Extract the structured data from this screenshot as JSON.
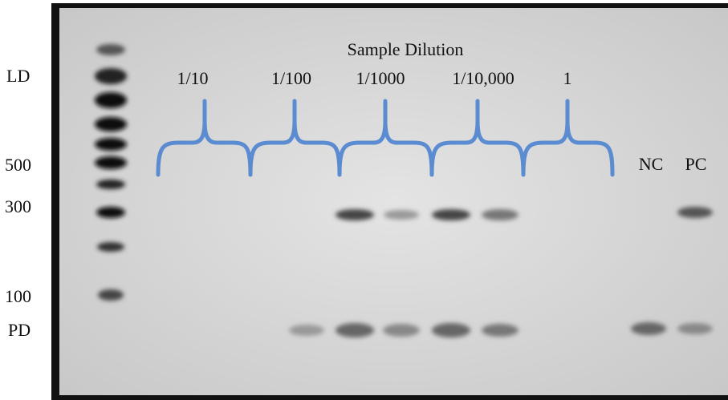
{
  "marker_labels": [
    "LD",
    "500",
    "300",
    "100",
    "PD"
  ],
  "title": "Sample Dilution",
  "dilutions": [
    "1/10",
    "1/100",
    "1/1000",
    "1/10,000",
    "1"
  ],
  "controls": [
    "NC",
    "PC"
  ]
}
